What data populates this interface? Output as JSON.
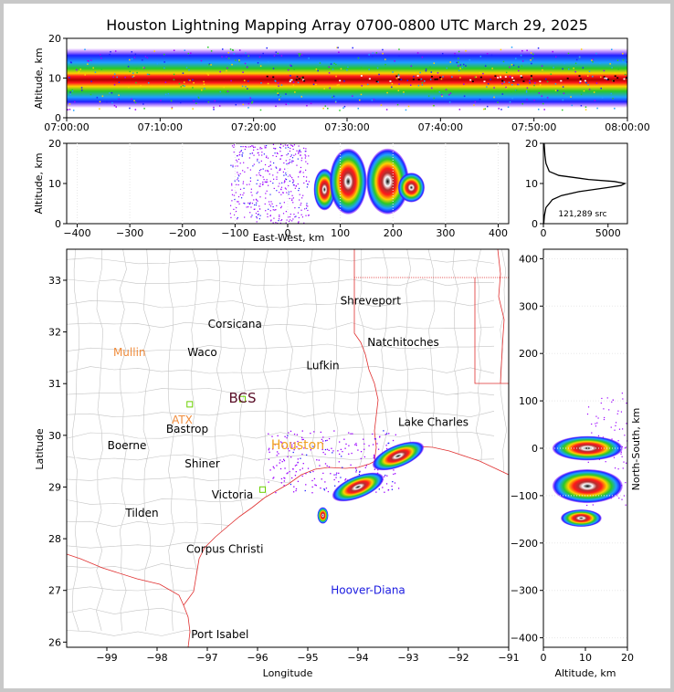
{
  "chart_data": [
    {
      "type": "heatmap",
      "title": "Houston Lightning Mapping Array 0700-0800 UTC March 29, 2025",
      "panel": "time-altitude",
      "ylabel": "Altitude, km",
      "ylim": [
        0,
        20
      ],
      "xlim": [
        "07:00:00",
        "08:00:00"
      ],
      "x_ticks": [
        "07:00:00",
        "07:10:00",
        "07:20:00",
        "07:30:00",
        "07:40:00",
        "07:50:00",
        "08:00:00"
      ],
      "y_ticks": [
        0,
        10,
        20
      ],
      "core_altitude_km": [
        8,
        12
      ]
    },
    {
      "type": "heatmap",
      "panel": "east-west vs altitude",
      "xlabel": "East-West, km",
      "ylabel": "Altitude, km",
      "xlim": [
        -420,
        420
      ],
      "ylim": [
        0,
        20
      ],
      "x_ticks": [
        -400,
        -300,
        -200,
        -100,
        0,
        100,
        200,
        300,
        400
      ],
      "y_ticks": [
        0,
        10,
        20
      ],
      "clusters": [
        {
          "x": [
            60,
            80
          ],
          "alt": [
            4,
            13
          ]
        },
        {
          "x": [
            90,
            140
          ],
          "alt": [
            3,
            18
          ]
        },
        {
          "x": [
            160,
            220
          ],
          "alt": [
            3,
            18
          ]
        },
        {
          "x": [
            220,
            250
          ],
          "alt": [
            6,
            12
          ]
        }
      ]
    },
    {
      "type": "line",
      "panel": "altitude histogram",
      "xlim": [
        0,
        6500
      ],
      "ylim": [
        0,
        20
      ],
      "x_ticks": [
        0,
        5000
      ],
      "y_ticks": [
        0,
        10,
        20
      ],
      "annotation": "121,289 src",
      "profile": [
        {
          "alt": 0,
          "count": 30
        },
        {
          "alt": 2,
          "count": 80
        },
        {
          "alt": 4,
          "count": 200
        },
        {
          "alt": 6,
          "count": 700
        },
        {
          "alt": 7,
          "count": 1400
        },
        {
          "alt": 8,
          "count": 2800
        },
        {
          "alt": 9,
          "count": 5000
        },
        {
          "alt": 9.5,
          "count": 6000
        },
        {
          "alt": 10,
          "count": 6300
        },
        {
          "alt": 10.5,
          "count": 5500
        },
        {
          "alt": 11,
          "count": 3500
        },
        {
          "alt": 12,
          "count": 1200
        },
        {
          "alt": 13,
          "count": 450
        },
        {
          "alt": 15,
          "count": 200
        },
        {
          "alt": 17,
          "count": 120
        },
        {
          "alt": 20,
          "count": 60
        }
      ]
    },
    {
      "type": "heatmap",
      "panel": "plan view map",
      "xlabel": "Longitude",
      "ylabel": "Latitude",
      "xlim": [
        -99.8,
        -91
      ],
      "ylim": [
        25.9,
        33.6
      ],
      "x_ticks": [
        -99,
        -98,
        -97,
        -96,
        -95,
        -94,
        -93,
        -92,
        -91
      ],
      "y_ticks": [
        26,
        27,
        28,
        29,
        30,
        31,
        32,
        33
      ],
      "places": [
        {
          "name": "Shreveport",
          "lon": -93.75,
          "lat": 32.6
        },
        {
          "name": "Corsicana",
          "lon": -96.45,
          "lat": 32.15
        },
        {
          "name": "Mullin",
          "lon": -98.55,
          "lat": 31.6,
          "color": "#f08c3c"
        },
        {
          "name": "Waco",
          "lon": -97.1,
          "lat": 31.6
        },
        {
          "name": "Natchitoches",
          "lon": -93.1,
          "lat": 31.8
        },
        {
          "name": "Lufkin",
          "lon": -94.7,
          "lat": 31.35
        },
        {
          "name": "BCS",
          "lon": -96.3,
          "lat": 30.7,
          "color": "#5a0f28",
          "size": 15
        },
        {
          "name": "ATX",
          "lon": -97.5,
          "lat": 30.3,
          "color": "#f08c3c"
        },
        {
          "name": "Bastrop",
          "lon": -97.4,
          "lat": 30.12
        },
        {
          "name": "Lake Charles",
          "lon": -92.5,
          "lat": 30.25
        },
        {
          "name": "Houston",
          "lon": -95.2,
          "lat": 29.8,
          "color": "#f0a020",
          "size": 14
        },
        {
          "name": "Boerne",
          "lon": -98.6,
          "lat": 29.8
        },
        {
          "name": "Shiner",
          "lon": -97.1,
          "lat": 29.45
        },
        {
          "name": "Victoria",
          "lon": -96.5,
          "lat": 28.85
        },
        {
          "name": "Tilden",
          "lon": -98.3,
          "lat": 28.5
        },
        {
          "name": "Corpus Christi",
          "lon": -96.65,
          "lat": 27.8
        },
        {
          "name": "Hoover-Diana",
          "lon": -93.8,
          "lat": 27.0,
          "color": "#1a1ae0"
        },
        {
          "name": "Port Isabel",
          "lon": -96.75,
          "lat": 26.15
        }
      ],
      "storms": [
        {
          "lon": -93.2,
          "lat": 29.6,
          "size": "large"
        },
        {
          "lon": -94.0,
          "lat": 29.0,
          "size": "large"
        },
        {
          "lon": -94.7,
          "lat": 28.45,
          "size": "small"
        }
      ],
      "stations": [
        {
          "lon": -97.35,
          "lat": 30.6
        },
        {
          "lon": -96.3,
          "lat": 30.7
        },
        {
          "lon": -95.9,
          "lat": 28.95
        }
      ]
    },
    {
      "type": "heatmap",
      "panel": "altitude vs north-south",
      "xlabel": "Altitude, km",
      "ylabel": "North-South, km",
      "xlim": [
        0,
        20
      ],
      "ylim": [
        -420,
        420
      ],
      "x_ticks": [
        0,
        10,
        20
      ],
      "y_ticks": [
        -400,
        -300,
        -200,
        -100,
        0,
        100,
        200,
        300,
        400
      ],
      "clusters": [
        {
          "ns": [
            -20,
            20
          ],
          "alt": [
            3,
            18
          ]
        },
        {
          "ns": [
            -110,
            -50
          ],
          "alt": [
            3,
            18
          ]
        },
        {
          "ns": [
            -160,
            -135
          ],
          "alt": [
            5,
            13
          ]
        }
      ]
    }
  ]
}
